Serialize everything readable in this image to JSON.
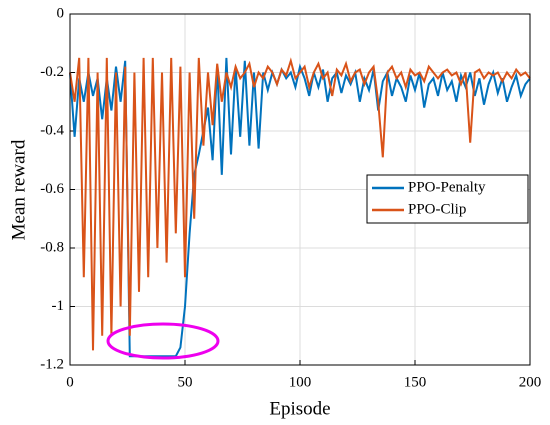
{
  "chart_data": {
    "type": "line",
    "xlabel": "Episode",
    "ylabel": "Mean reward",
    "x": [
      0,
      2,
      4,
      6,
      8,
      10,
      12,
      14,
      16,
      18,
      20,
      22,
      24,
      26,
      28,
      30,
      32,
      34,
      36,
      38,
      40,
      42,
      44,
      46,
      48,
      50,
      52,
      54,
      56,
      58,
      60,
      62,
      64,
      66,
      68,
      70,
      72,
      74,
      76,
      78,
      80,
      82,
      84,
      86,
      88,
      90,
      92,
      94,
      96,
      98,
      100,
      102,
      104,
      106,
      108,
      110,
      112,
      114,
      116,
      118,
      120,
      122,
      124,
      126,
      128,
      130,
      132,
      134,
      136,
      138,
      140,
      142,
      144,
      146,
      148,
      150,
      152,
      154,
      156,
      158,
      160,
      162,
      164,
      166,
      168,
      170,
      172,
      174,
      176,
      178,
      180,
      182,
      184,
      186,
      188,
      190,
      192,
      194,
      196,
      198,
      200
    ],
    "series": [
      {
        "name": "PPO-Penalty",
        "color": "#0072bd",
        "values": [
          -0.2,
          -0.42,
          -0.22,
          -0.3,
          -0.2,
          -0.28,
          -0.22,
          -0.36,
          -0.22,
          -0.33,
          -0.18,
          -0.3,
          -0.16,
          -1.17,
          -1.17,
          -1.17,
          -1.17,
          -1.17,
          -1.17,
          -1.17,
          -1.17,
          -1.17,
          -1.17,
          -1.17,
          -1.14,
          -1.0,
          -0.75,
          -0.55,
          -0.48,
          -0.4,
          -0.32,
          -0.5,
          -0.18,
          -0.55,
          -0.15,
          -0.48,
          -0.18,
          -0.42,
          -0.16,
          -0.45,
          -0.2,
          -0.46,
          -0.2,
          -0.26,
          -0.2,
          -0.24,
          -0.19,
          -0.22,
          -0.2,
          -0.25,
          -0.18,
          -0.22,
          -0.28,
          -0.2,
          -0.25,
          -0.19,
          -0.3,
          -0.22,
          -0.2,
          -0.27,
          -0.21,
          -0.24,
          -0.2,
          -0.3,
          -0.22,
          -0.26,
          -0.19,
          -0.33,
          -0.23,
          -0.2,
          -0.28,
          -0.22,
          -0.25,
          -0.3,
          -0.21,
          -0.26,
          -0.2,
          -0.32,
          -0.24,
          -0.22,
          -0.28,
          -0.2,
          -0.26,
          -0.23,
          -0.3,
          -0.21,
          -0.25,
          -0.2,
          -0.28,
          -0.22,
          -0.31,
          -0.24,
          -0.2,
          -0.27,
          -0.22,
          -0.3,
          -0.25,
          -0.21,
          -0.28,
          -0.24,
          -0.22
        ]
      },
      {
        "name": "PPO-Clip",
        "color": "#d95319",
        "values": [
          -0.2,
          -0.3,
          -0.15,
          -0.9,
          -0.15,
          -1.15,
          -0.2,
          -1.1,
          -0.15,
          -1.1,
          -0.2,
          -1.0,
          -0.18,
          -1.1,
          -0.2,
          -0.95,
          -0.15,
          -0.9,
          -0.15,
          -0.8,
          -0.2,
          -0.85,
          -0.15,
          -0.75,
          -0.18,
          -0.9,
          -0.2,
          -0.7,
          -0.15,
          -0.45,
          -0.2,
          -0.38,
          -0.17,
          -0.3,
          -0.2,
          -0.25,
          -0.18,
          -0.22,
          -0.2,
          -0.17,
          -0.25,
          -0.2,
          -0.22,
          -0.18,
          -0.2,
          -0.24,
          -0.19,
          -0.21,
          -0.16,
          -0.22,
          -0.2,
          -0.18,
          -0.25,
          -0.2,
          -0.17,
          -0.22,
          -0.2,
          -0.28,
          -0.19,
          -0.21,
          -0.17,
          -0.23,
          -0.2,
          -0.19,
          -0.24,
          -0.2,
          -0.18,
          -0.3,
          -0.49,
          -0.2,
          -0.18,
          -0.22,
          -0.2,
          -0.25,
          -0.19,
          -0.21,
          -0.2,
          -0.23,
          -0.18,
          -0.2,
          -0.22,
          -0.2,
          -0.19,
          -0.21,
          -0.2,
          -0.24,
          -0.2,
          -0.44,
          -0.2,
          -0.19,
          -0.22,
          -0.2,
          -0.21,
          -0.2,
          -0.23,
          -0.2,
          -0.22,
          -0.19,
          -0.21,
          -0.2,
          -0.22
        ]
      }
    ],
    "xlim": [
      0,
      200
    ],
    "xticks": [
      0,
      50,
      100,
      150,
      200
    ],
    "ylim": [
      -1.2,
      0
    ],
    "yticks": [
      -1.2,
      -1,
      -0.8,
      -0.6,
      -0.4,
      -0.2,
      0
    ],
    "grid": true,
    "legend": "right"
  }
}
